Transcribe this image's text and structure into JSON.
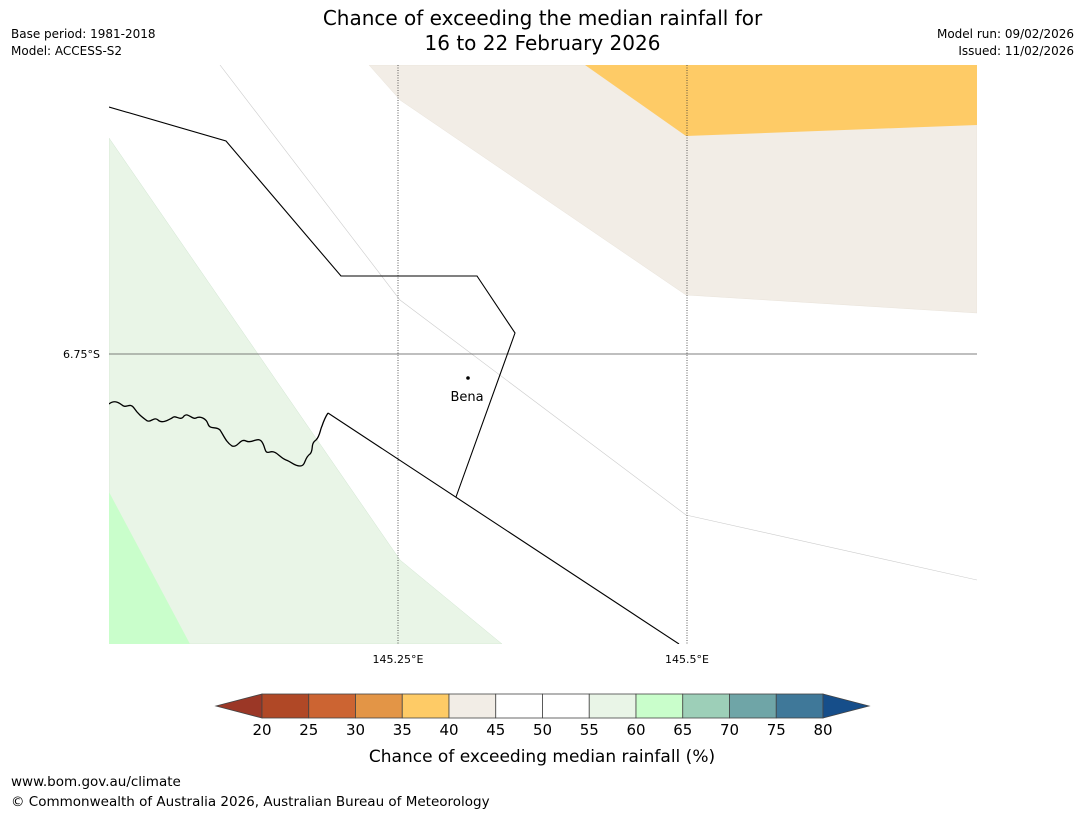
{
  "title": {
    "line1": "Chance of exceeding the median rainfall for",
    "line2": "16 to 22 February 2026"
  },
  "meta_left": {
    "base_period": "Base period: 1981-2018",
    "model": "Model: ACCESS-S2"
  },
  "meta_right": {
    "model_run": "Model run: 09/02/2026",
    "issued": "Issued: 11/02/2026"
  },
  "map": {
    "place_label": "Bena",
    "lat_label": "6.75°S",
    "lon_labels": [
      "145.25°E",
      "145.5°E"
    ]
  },
  "colorbar": {
    "title": "Chance of exceeding median rainfall (%)",
    "ticks": [
      "20",
      "25",
      "30",
      "35",
      "40",
      "45",
      "50",
      "55",
      "60",
      "65",
      "70",
      "75",
      "80"
    ],
    "low_color": "#9b3726",
    "colors": [
      "#b04826",
      "#cc6432",
      "#e39546",
      "#fecb66",
      "#f2ede6",
      "#ffffff",
      "#ffffff",
      "#e9f5e7",
      "#c9fecb",
      "#9dcfb8",
      "#6fa5a7",
      "#3f7899"
    ],
    "high_color": "#164e8a"
  },
  "footer": {
    "site": "www.bom.gov.au/climate",
    "copyright": "© Commonwealth of Australia 2026, Australian Bureau of Meteorology"
  }
}
